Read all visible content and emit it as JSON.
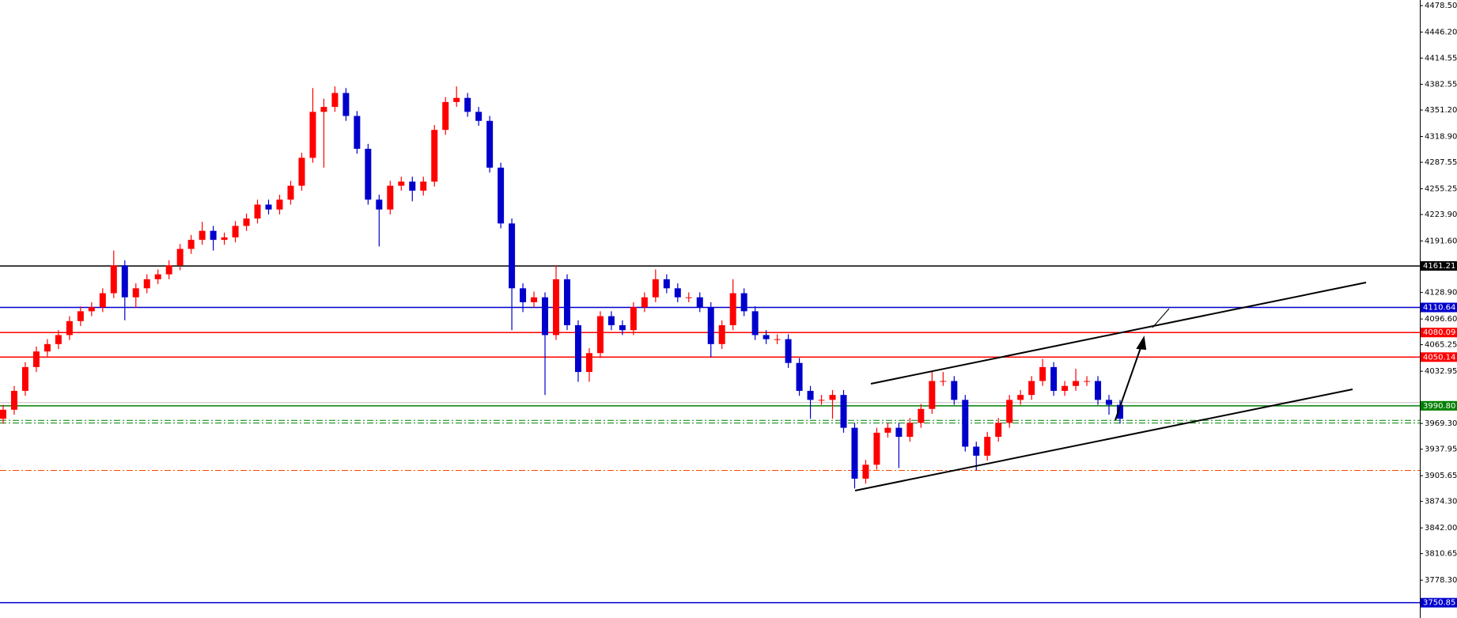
{
  "chart_data": {
    "type": "candlestick",
    "open": [
      3975,
      3986,
      4009,
      4038,
      4057,
      4066,
      4077,
      4094,
      4106,
      4111,
      4128,
      4162,
      4123,
      4134,
      4145,
      4151,
      4162,
      4182,
      4193,
      4204,
      4193,
      4196,
      4210,
      4219,
      4236,
      4230,
      4242,
      4259,
      4293,
      4349,
      4355,
      4372,
      4344,
      4304,
      4242,
      4230,
      4259,
      4264,
      4253,
      4264,
      4327,
      4361,
      4366,
      4349,
      4338,
      4281,
      4213,
      4134,
      4117,
      4123,
      4077,
      4145,
      4089,
      4032,
      4055,
      4100,
      4089,
      4083,
      4111,
      4123,
      4145,
      4134,
      4123,
      4123,
      4111,
      4066,
      4089,
      4128,
      4106,
      4077,
      4072,
      4072,
      4043,
      4009,
      3998,
      3998,
      4004,
      3964,
      3902,
      3919,
      3958,
      3964,
      3953,
      3970,
      3987,
      4021,
      4021,
      3998,
      3941,
      3930,
      3953,
      3970,
      3998,
      4004,
      4021,
      4038,
      4009,
      4015,
      4021,
      4021,
      3998,
      3992
    ],
    "high": [
      3992,
      4015,
      4044,
      4063,
      4072,
      4083,
      4100,
      4112,
      4117,
      4134,
      4180,
      4168,
      4140,
      4151,
      4157,
      4168,
      4188,
      4199,
      4215,
      4210,
      4202,
      4216,
      4225,
      4242,
      4242,
      4248,
      4265,
      4299,
      4378,
      4365,
      4380,
      4378,
      4350,
      4310,
      4248,
      4265,
      4270,
      4270,
      4270,
      4333,
      4367,
      4380,
      4372,
      4355,
      4344,
      4287,
      4219,
      4140,
      4130,
      4129,
      4162,
      4151,
      4095,
      4061,
      4106,
      4106,
      4095,
      4117,
      4129,
      4157,
      4151,
      4140,
      4129,
      4129,
      4117,
      4095,
      4145,
      4134,
      4112,
      4083,
      4078,
      4078,
      4049,
      4015,
      4004,
      4010,
      4010,
      3970,
      3925,
      3964,
      3970,
      3970,
      3976,
      3993,
      4032,
      4032,
      4027,
      4004,
      3947,
      3959,
      3976,
      4004,
      4010,
      4027,
      4048,
      4044,
      4021,
      4036,
      4027,
      4027,
      4004,
      3998
    ],
    "low": [
      3969,
      3980,
      4003,
      4032,
      4051,
      4060,
      4071,
      4088,
      4100,
      4105,
      4122,
      4095,
      4110,
      4128,
      4139,
      4145,
      4156,
      4176,
      4187,
      4180,
      4187,
      4190,
      4204,
      4213,
      4224,
      4224,
      4236,
      4253,
      4287,
      4281,
      4349,
      4338,
      4298,
      4236,
      4185,
      4224,
      4253,
      4240,
      4247,
      4258,
      4321,
      4355,
      4343,
      4332,
      4275,
      4207,
      4083,
      4105,
      4111,
      4004,
      4071,
      4083,
      4020,
      4020,
      4049,
      4083,
      4077,
      4077,
      4105,
      4117,
      4128,
      4117,
      4117,
      4105,
      4050,
      4060,
      4083,
      4100,
      4071,
      4066,
      4066,
      4037,
      4003,
      3975,
      3992,
      3975,
      3958,
      3890,
      3896,
      3913,
      3952,
      3915,
      3947,
      3964,
      3981,
      4015,
      3992,
      3935,
      3912,
      3924,
      3947,
      3964,
      3992,
      3998,
      4015,
      4003,
      4003,
      4009,
      4015,
      3992,
      3980,
      3969
    ],
    "close": [
      3986,
      4009,
      4038,
      4057,
      4066,
      4077,
      4094,
      4106,
      4111,
      4128,
      4162,
      4123,
      4134,
      4145,
      4151,
      4162,
      4182,
      4193,
      4204,
      4193,
      4196,
      4210,
      4219,
      4236,
      4230,
      4242,
      4259,
      4293,
      4349,
      4355,
      4372,
      4344,
      4304,
      4242,
      4230,
      4259,
      4264,
      4253,
      4264,
      4327,
      4361,
      4366,
      4349,
      4338,
      4281,
      4213,
      4134,
      4117,
      4123,
      4077,
      4145,
      4089,
      4032,
      4055,
      4100,
      4089,
      4083,
      4111,
      4123,
      4145,
      4134,
      4123,
      4123,
      4111,
      4066,
      4089,
      4128,
      4106,
      4077,
      4072,
      4072,
      4043,
      4009,
      3998,
      3998,
      4004,
      3964,
      3902,
      3919,
      3958,
      3964,
      3953,
      3970,
      3987,
      4021,
      4021,
      3998,
      3941,
      3930,
      3953,
      3970,
      3998,
      4004,
      4021,
      4038,
      4009,
      4015,
      4021,
      4021,
      3998,
      3992,
      3975
    ],
    "up_color": "#ff0000",
    "down_color": "#0000cd",
    "ylim": [
      3732.2,
      4485.3
    ],
    "yticks": [
      {
        "value": 4478.5,
        "label": "4478.50"
      },
      {
        "value": 4446.2,
        "label": "4446.20"
      },
      4414.55,
      4382.55,
      {
        "value": 4351.2,
        "label": "4351.20"
      },
      {
        "value": 4318.9,
        "label": "4318.90"
      },
      4287.55,
      4255.25,
      {
        "value": 4223.9,
        "label": "4223.90"
      },
      {
        "value": 4191.6,
        "label": "4191.60"
      },
      {
        "value": 4128.9,
        "label": "4128.90"
      },
      {
        "value": 4096.6,
        "label": "4096.60"
      },
      4065.25,
      4032.95,
      {
        "value": 3969.3,
        "label": "3969.30"
      },
      3937.95,
      3905.65,
      {
        "value": 3874.3,
        "label": "3874.30"
      },
      {
        "value": 3842,
        "label": "3842.00"
      },
      3810.65,
      {
        "value": 3778.3,
        "label": "3778.30"
      }
    ],
    "levels": [
      {
        "value": 4161.21,
        "color": "#000000"
      },
      {
        "value": 4110.64,
        "color": "#0000cd"
      },
      {
        "value": 4080.09,
        "color": "#ff0000"
      },
      {
        "value": 4050.14,
        "color": "#ff0000"
      },
      {
        "value": 3990.8,
        "label": "3990.80",
        "color": "#008000"
      },
      {
        "value": 3750.85,
        "color": "#0000cd"
      }
    ],
    "dashed_levels": [
      {
        "value": 3994.7,
        "color": "#c0c0c0"
      },
      {
        "value": 3973,
        "color": "#008000"
      },
      {
        "value": 3969.8,
        "color": "#008000"
      },
      {
        "value": 3912,
        "color": "#ff4500"
      }
    ]
  }
}
